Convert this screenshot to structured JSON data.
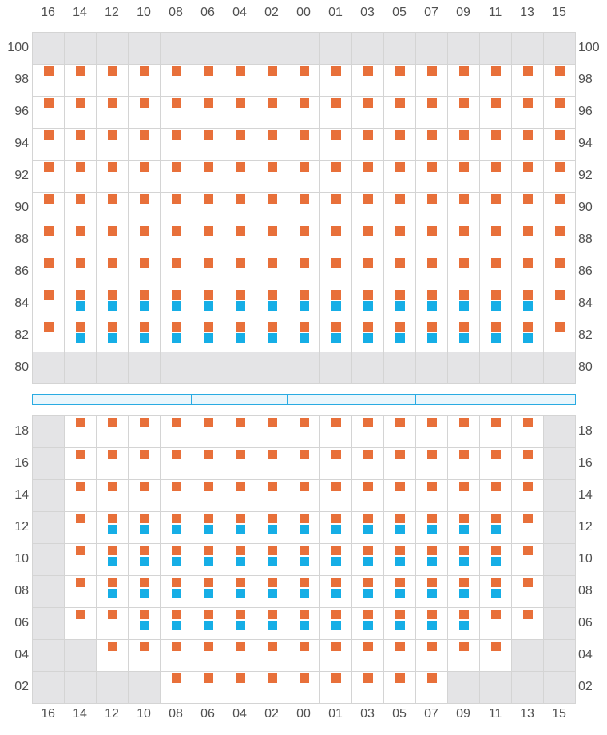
{
  "colors": {
    "orange": "#e8703a",
    "blue": "#16aee6",
    "blocked": "#e4e4e6",
    "grid": "#d4d4d4",
    "divider_border": "#29abe2",
    "divider_fill": "#eaf6fc"
  },
  "columns": [
    "16",
    "14",
    "12",
    "10",
    "08",
    "06",
    "04",
    "02",
    "00",
    "01",
    "03",
    "05",
    "07",
    "09",
    "11",
    "13",
    "15"
  ],
  "divider_segments": 4,
  "upper": {
    "rows": [
      "100",
      "98",
      "96",
      "94",
      "92",
      "90",
      "88",
      "86",
      "84",
      "82",
      "80"
    ],
    "blocked_rows": [
      "100",
      "80"
    ],
    "orange": {
      "98": "all",
      "96": "all",
      "94": "all",
      "92": "all",
      "90": "all",
      "88": "all",
      "86": "all",
      "84": "all",
      "82": "all"
    },
    "blue": {
      "84": [
        "14",
        "12",
        "10",
        "08",
        "06",
        "04",
        "02",
        "00",
        "01",
        "03",
        "05",
        "07",
        "09",
        "11",
        "13"
      ],
      "82": [
        "14",
        "12",
        "10",
        "08",
        "06",
        "04",
        "02",
        "00",
        "01",
        "03",
        "05",
        "07",
        "09",
        "11",
        "13"
      ]
    }
  },
  "lower": {
    "rows": [
      "18",
      "16",
      "14",
      "12",
      "10",
      "08",
      "06",
      "04",
      "02"
    ],
    "blocked": {
      "18": [
        "16",
        "15"
      ],
      "16": [
        "16",
        "15"
      ],
      "14": [
        "16",
        "15"
      ],
      "12": [
        "16",
        "15"
      ],
      "10": [
        "16",
        "15"
      ],
      "08": [
        "16",
        "15"
      ],
      "06": [
        "16",
        "15"
      ],
      "04": [
        "16",
        "14",
        "13",
        "15"
      ],
      "02": [
        "16",
        "14",
        "12",
        "10",
        "09",
        "11",
        "13",
        "15"
      ]
    },
    "orange": {
      "18": [
        "14",
        "12",
        "10",
        "08",
        "06",
        "04",
        "02",
        "00",
        "01",
        "03",
        "05",
        "07",
        "09",
        "11",
        "13"
      ],
      "16": [
        "14",
        "12",
        "10",
        "08",
        "06",
        "04",
        "02",
        "00",
        "01",
        "03",
        "05",
        "07",
        "09",
        "11",
        "13"
      ],
      "14": [
        "14",
        "12",
        "10",
        "08",
        "06",
        "04",
        "02",
        "00",
        "01",
        "03",
        "05",
        "07",
        "09",
        "11",
        "13"
      ],
      "12": [
        "14",
        "12",
        "10",
        "08",
        "06",
        "04",
        "02",
        "00",
        "01",
        "03",
        "05",
        "07",
        "09",
        "11",
        "13"
      ],
      "10": [
        "14",
        "12",
        "10",
        "08",
        "06",
        "04",
        "02",
        "00",
        "01",
        "03",
        "05",
        "07",
        "09",
        "11",
        "13"
      ],
      "08": [
        "14",
        "12",
        "10",
        "08",
        "06",
        "04",
        "02",
        "00",
        "01",
        "03",
        "05",
        "07",
        "09",
        "11",
        "13"
      ],
      "06": [
        "14",
        "12",
        "10",
        "08",
        "06",
        "04",
        "02",
        "00",
        "01",
        "03",
        "05",
        "07",
        "09",
        "11",
        "13"
      ],
      "04": [
        "12",
        "10",
        "08",
        "06",
        "04",
        "02",
        "00",
        "01",
        "03",
        "05",
        "07",
        "09",
        "11"
      ],
      "02": [
        "08",
        "06",
        "04",
        "02",
        "00",
        "01",
        "03",
        "05",
        "07"
      ]
    },
    "blue": {
      "12": [
        "12",
        "10",
        "08",
        "06",
        "04",
        "02",
        "00",
        "01",
        "03",
        "05",
        "07",
        "09",
        "11"
      ],
      "10": [
        "12",
        "10",
        "08",
        "06",
        "04",
        "02",
        "00",
        "01",
        "03",
        "05",
        "07",
        "09",
        "11"
      ],
      "08": [
        "12",
        "10",
        "08",
        "06",
        "04",
        "02",
        "00",
        "01",
        "03",
        "05",
        "07",
        "09",
        "11"
      ],
      "06": [
        "10",
        "08",
        "06",
        "04",
        "02",
        "00",
        "01",
        "03",
        "05",
        "07",
        "09"
      ]
    }
  }
}
